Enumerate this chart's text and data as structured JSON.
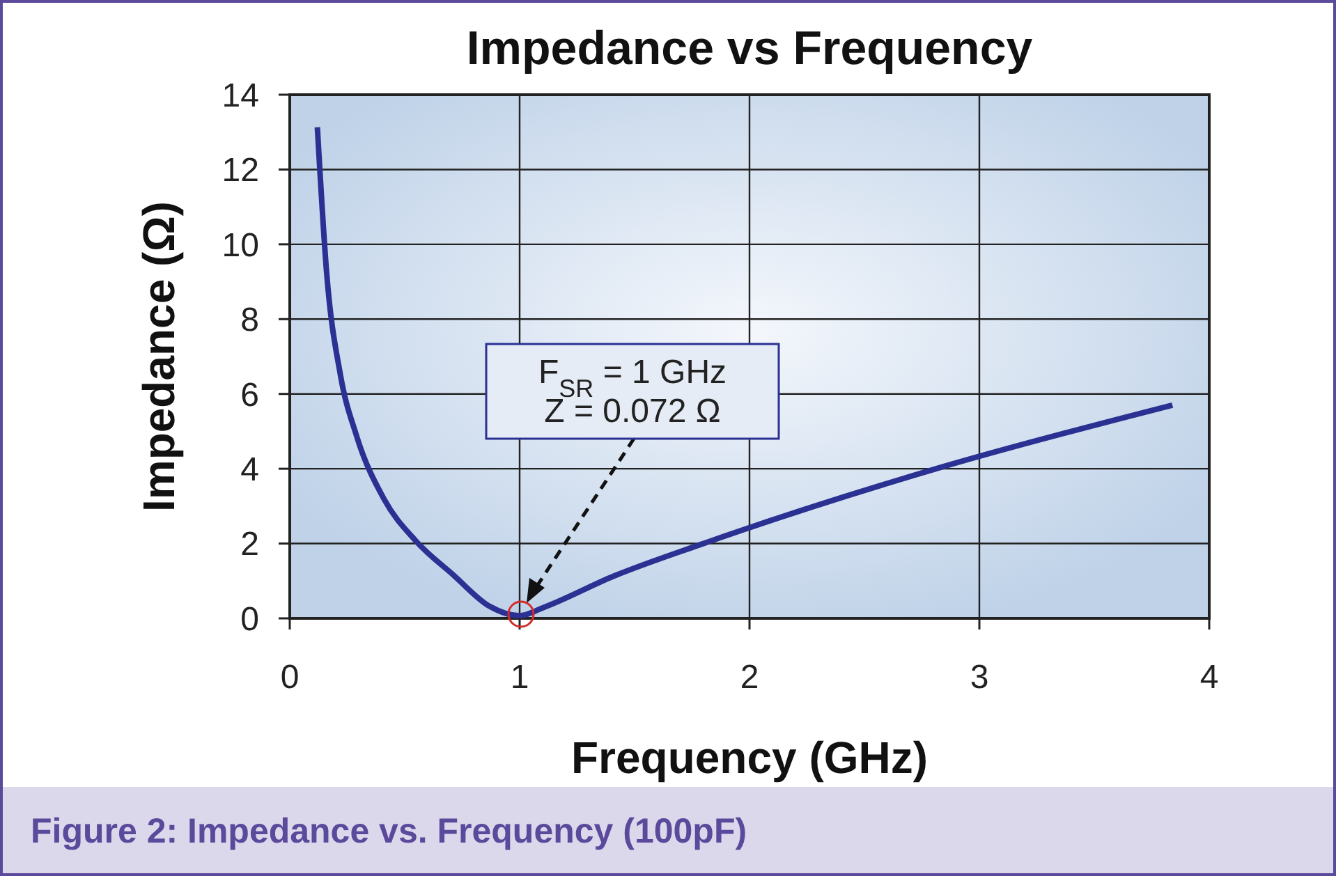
{
  "chart_data": {
    "type": "line",
    "title": "Impedance vs Frequency",
    "xlabel": "Frequency (GHz)",
    "ylabel": "Impedance (Ω)",
    "series": [
      {
        "color": "#2b3192",
        "x": [
          0.12,
          0.16,
          0.22,
          0.29,
          0.41,
          0.55,
          0.71,
          0.87,
          1.0,
          1.1,
          1.41,
          1.79,
          2.84,
          3.84
        ],
        "values": [
          13.13,
          9.27,
          6.52,
          4.89,
          3.19,
          2.06,
          1.17,
          0.32,
          0.07,
          0.28,
          1.13,
          1.98,
          4.05,
          5.7
        ]
      }
    ],
    "xlim": [
      0,
      4
    ],
    "xticks": [
      0,
      1,
      2,
      3,
      4
    ],
    "ylim": [
      0,
      14
    ],
    "yticks": [
      0,
      2,
      4,
      6,
      8,
      10,
      12,
      14
    ],
    "grid": true,
    "marker": "none",
    "line_style": "solid",
    "annotations": [
      "F$_{SR}$ = 1 GHz\nZ = 0.072 Ω",
      "Figure 2: Impedance vs. Frequency (100pF)"
    ]
  }
}
